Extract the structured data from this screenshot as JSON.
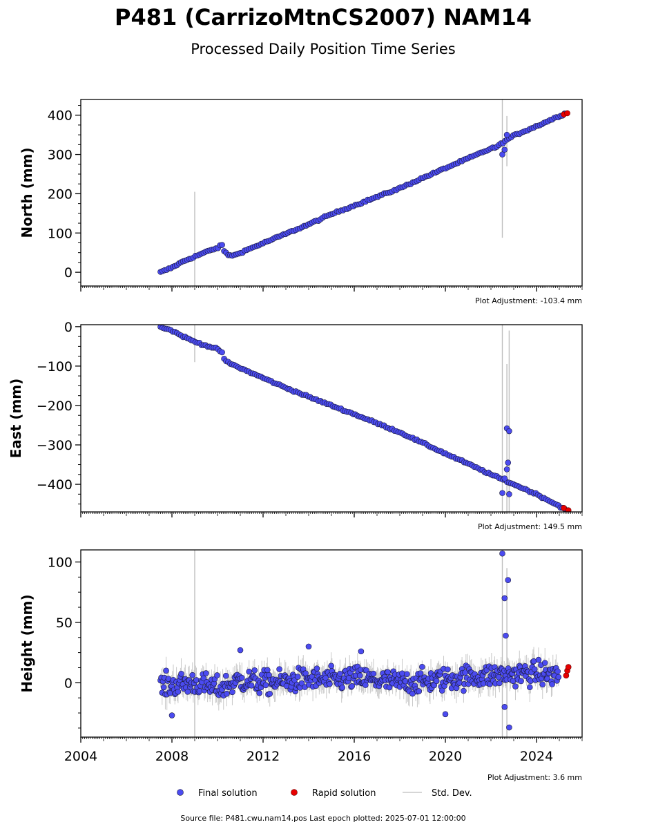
{
  "title": "P481 (CarrizoMtnCS2007) NAM14",
  "subtitle": "Processed Daily Position Time Series",
  "source": "Source file: P481.cwu.nam14.pos  Last epoch plotted: 2025-07-01 12:00:00",
  "legend": {
    "final_label": "Final solution",
    "rapid_label": "Rapid solution",
    "std_label": "Std. Dev."
  },
  "colors": {
    "final": "#4b4bf0",
    "rapid": "#e60000",
    "std": "#bfbfbf",
    "edge": "#1a1a3a"
  },
  "chart_data": [
    {
      "type": "scatter",
      "ylabel": "North (mm)",
      "adjustment": "Plot Adjustment: -103.4 mm",
      "xlim": [
        2004,
        2026
      ],
      "ylim": [
        -35,
        440
      ],
      "yticks": [
        0,
        100,
        200,
        300,
        400
      ],
      "ytick_labels": [
        "0",
        "100",
        "200",
        "300",
        "400"
      ],
      "xticks": [
        2004,
        2008,
        2012,
        2016,
        2020,
        2024
      ],
      "xtick_labels": [],
      "series": [
        {
          "role": "final",
          "x": [
            2007.5,
            2008.0,
            2008.5,
            2009.0,
            2009.5,
            2010.0,
            2010.2,
            2010.3,
            2010.5,
            2010.8,
            2011.0,
            2012.0,
            2013.0,
            2014.0,
            2015.0,
            2016.0,
            2017.0,
            2018.0,
            2019.0,
            2020.0,
            2021.0,
            2022.0,
            2022.3,
            2022.5,
            2023.0,
            2024.0,
            2025.0,
            2025.3
          ],
          "y": [
            0,
            12,
            28,
            40,
            52,
            62,
            70,
            52,
            43,
            44,
            50,
            74,
            98,
            122,
            148,
            170,
            192,
            214,
            240,
            265,
            290,
            315,
            320,
            330,
            348,
            372,
            398,
            405
          ]
        },
        {
          "role": "rapid",
          "x": [
            2025.2,
            2025.35
          ],
          "y": [
            402,
            405
          ]
        }
      ],
      "outliers": [
        {
          "x": 2022.5,
          "y": 300
        },
        {
          "x": 2022.6,
          "y": 312
        },
        {
          "x": 2022.7,
          "y": 350
        }
      ],
      "error_bars": [
        {
          "x": 2009.0,
          "low": -35,
          "high": 205
        },
        {
          "x": 2022.5,
          "low": 88,
          "high": 440
        },
        {
          "x": 2022.7,
          "low": 270,
          "high": 398
        }
      ]
    },
    {
      "type": "scatter",
      "ylabel": "East (mm)",
      "adjustment": "Plot Adjustment: 149.5 mm",
      "xlim": [
        2004,
        2026
      ],
      "ylim": [
        -470,
        5
      ],
      "yticks": [
        0,
        -100,
        -200,
        -300,
        -400
      ],
      "ytick_labels": [
        "0",
        "−100",
        "−200",
        "−300",
        "−400"
      ],
      "xticks": [
        2004,
        2008,
        2012,
        2016,
        2020,
        2024
      ],
      "xtick_labels": [],
      "series": [
        {
          "role": "final",
          "x": [
            2007.5,
            2008.0,
            2008.5,
            2009.0,
            2009.5,
            2010.0,
            2010.2,
            2010.3,
            2010.5,
            2011.0,
            2012.0,
            2013.0,
            2014.0,
            2015.0,
            2016.0,
            2017.0,
            2018.0,
            2019.0,
            2020.0,
            2021.0,
            2022.0,
            2023.0,
            2024.0,
            2025.0,
            2025.3
          ],
          "y": [
            0,
            -10,
            -25,
            -38,
            -48,
            -57,
            -65,
            -85,
            -92,
            -105,
            -130,
            -155,
            -178,
            -200,
            -222,
            -245,
            -268,
            -295,
            -322,
            -348,
            -375,
            -400,
            -425,
            -455,
            -465
          ]
        },
        {
          "role": "rapid",
          "x": [
            2025.2,
            2025.4
          ],
          "y": [
            -460,
            -466
          ]
        }
      ],
      "outliers": [
        {
          "x": 2022.5,
          "y": -422
        },
        {
          "x": 2022.7,
          "y": -258
        },
        {
          "x": 2022.8,
          "y": -265
        },
        {
          "x": 2022.75,
          "y": -345
        },
        {
          "x": 2022.7,
          "y": -362
        },
        {
          "x": 2022.8,
          "y": -425
        },
        {
          "x": 2022.6,
          "y": -385
        }
      ],
      "error_bars": [
        {
          "x": 2009.0,
          "low": -90,
          "high": 5
        },
        {
          "x": 2022.5,
          "low": -470,
          "high": 5
        },
        {
          "x": 2022.7,
          "low": -470,
          "high": -95
        },
        {
          "x": 2022.8,
          "low": -470,
          "high": -10
        }
      ]
    },
    {
      "type": "scatter",
      "ylabel": "Height (mm)",
      "adjustment": "Plot Adjustment: 3.6 mm",
      "xlim": [
        2004,
        2026
      ],
      "ylim": [
        -45,
        110
      ],
      "yticks": [
        0,
        50,
        100
      ],
      "ytick_labels": [
        "0",
        "50",
        "100"
      ],
      "xticks": [
        2004,
        2008,
        2012,
        2016,
        2020,
        2024
      ],
      "xtick_labels": [
        "2004",
        "2008",
        "2012",
        "2016",
        "2020",
        "2024"
      ],
      "series": [
        {
          "role": "final",
          "x": [
            2007.5,
            2008.0,
            2009.0,
            2010.0,
            2011.0,
            2012.0,
            2013.0,
            2014.0,
            2015.0,
            2016.0,
            2017.0,
            2018.0,
            2019.0,
            2020.0,
            2021.0,
            2022.0,
            2023.0,
            2024.0,
            2025.0
          ],
          "y": [
            -3,
            -2,
            0,
            -5,
            2,
            0,
            1,
            3,
            2,
            4,
            2,
            0,
            1,
            3,
            5,
            6,
            7,
            8,
            6
          ]
        },
        {
          "role": "rapid",
          "x": [
            2025.3,
            2025.35,
            2025.4
          ],
          "y": [
            6,
            10,
            13
          ]
        }
      ],
      "outliers": [
        {
          "x": 2022.5,
          "y": 107
        },
        {
          "x": 2022.6,
          "y": 70
        },
        {
          "x": 2022.75,
          "y": 85
        },
        {
          "x": 2022.65,
          "y": 39
        },
        {
          "x": 2022.6,
          "y": -20
        },
        {
          "x": 2022.8,
          "y": -37
        },
        {
          "x": 2014.0,
          "y": 30
        },
        {
          "x": 2016.3,
          "y": 26
        },
        {
          "x": 2011.0,
          "y": 27
        },
        {
          "x": 2020.0,
          "y": -26
        },
        {
          "x": 2008.0,
          "y": -27
        }
      ],
      "error_bars": [
        {
          "x": 2009.0,
          "low": -45,
          "high": 110
        },
        {
          "x": 2022.5,
          "low": -45,
          "high": 110
        },
        {
          "x": 2022.7,
          "low": -45,
          "high": 95
        }
      ]
    }
  ]
}
